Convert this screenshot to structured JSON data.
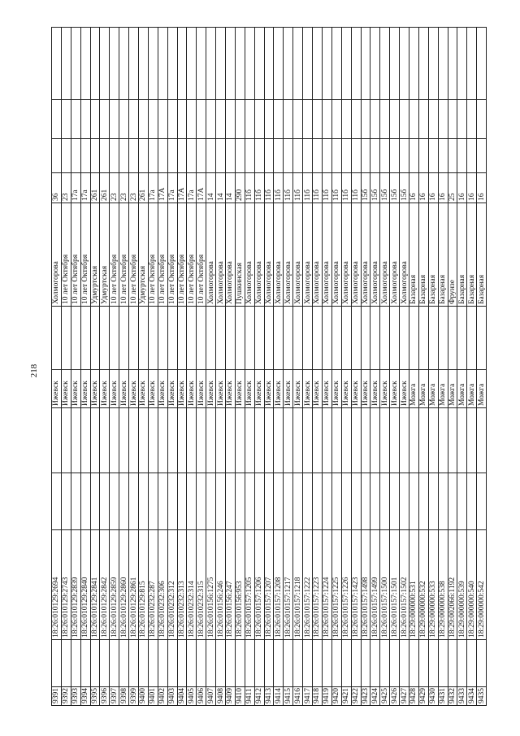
{
  "page_number": "218",
  "rows": [
    {
      "num": "9391",
      "cadastral": "18:26:010129:2694",
      "city": "Ижевск",
      "street": "Холмогорова",
      "house": "36"
    },
    {
      "num": "9392",
      "cadastral": "18:26:010129:2743",
      "city": "Ижевск",
      "street": "10 лет Октября",
      "house": "23"
    },
    {
      "num": "9393",
      "cadastral": "18:26:010129:2839",
      "city": "Ижевск",
      "street": "10 лет Октября",
      "house": "17а"
    },
    {
      "num": "9394",
      "cadastral": "18:26:010129:2840",
      "city": "Ижевск",
      "street": "10 лет Октября",
      "house": "17а"
    },
    {
      "num": "9395",
      "cadastral": "18:26:010129:2841",
      "city": "Ижевск",
      "street": "Удмуртская",
      "house": "261"
    },
    {
      "num": "9396",
      "cadastral": "18:26:010129:2842",
      "city": "Ижевск",
      "street": "Удмуртская",
      "house": "261"
    },
    {
      "num": "9397",
      "cadastral": "18:26:010129:2859",
      "city": "Ижевск",
      "street": "10 лет Октября",
      "house": "23"
    },
    {
      "num": "9398",
      "cadastral": "18:26:010129:2860",
      "city": "Ижевск",
      "street": "10 лет Октября",
      "house": "23"
    },
    {
      "num": "9399",
      "cadastral": "18:26:010129:2861",
      "city": "Ижевск",
      "street": "10 лет Октября",
      "house": "23"
    },
    {
      "num": "9400",
      "cadastral": "18:26:010129:815",
      "city": "Ижевск",
      "street": "Удмуртская",
      "house": "261"
    },
    {
      "num": "9401",
      "cadastral": "18:26:010232:287",
      "city": "Ижевск",
      "street": "10 лет Октября",
      "house": "17а"
    },
    {
      "num": "9402",
      "cadastral": "18:26:010232:306",
      "city": "Ижевск",
      "street": "10 лет Октября",
      "house": "17А"
    },
    {
      "num": "9403",
      "cadastral": "18:26:010232:312",
      "city": "Ижевск",
      "street": "10 лет Октября",
      "house": "17а"
    },
    {
      "num": "9404",
      "cadastral": "18:26:010232:313",
      "city": "Ижевск",
      "street": "10 лет Октября",
      "house": "17А"
    },
    {
      "num": "9405",
      "cadastral": "18:26:010232:314",
      "city": "Ижевск",
      "street": "10 лет Октября",
      "house": "17а"
    },
    {
      "num": "9406",
      "cadastral": "18:26:010232:315",
      "city": "Ижевск",
      "street": "10 лет Октября",
      "house": "17А"
    },
    {
      "num": "9407",
      "cadastral": "18:26:010156:1275",
      "city": "Ижевск",
      "street": "Холмогорова",
      "house": "14"
    },
    {
      "num": "9408",
      "cadastral": "18:26:010156:246",
      "city": "Ижевск",
      "street": "Холмогорова",
      "house": "14"
    },
    {
      "num": "9409",
      "cadastral": "18:26:010156:247",
      "city": "Ижевск",
      "street": "Холмогорова",
      "house": "14"
    },
    {
      "num": "9410",
      "cadastral": "18:26:010156:953",
      "city": "Ижевск",
      "street": "Пушкинская",
      "house": "290"
    },
    {
      "num": "9411",
      "cadastral": "18:26:010157:1205",
      "city": "Ижевск",
      "street": "Холмогорова",
      "house": "11б"
    },
    {
      "num": "9412",
      "cadastral": "18:26:010157:1206",
      "city": "Ижевск",
      "street": "Холмогорова",
      "house": "11б"
    },
    {
      "num": "9413",
      "cadastral": "18:26:010157:1207",
      "city": "Ижевск",
      "street": "Холмогорова",
      "house": "11б"
    },
    {
      "num": "9414",
      "cadastral": "18:26:010157:1208",
      "city": "Ижевск",
      "street": "Холмогорова",
      "house": "11б"
    },
    {
      "num": "9415",
      "cadastral": "18:26:010157:1217",
      "city": "Ижевск",
      "street": "Холмогорова",
      "house": "11б"
    },
    {
      "num": "9416",
      "cadastral": "18:26:010157:1218",
      "city": "Ижевск",
      "street": "Холмогорова",
      "house": "11б"
    },
    {
      "num": "9417",
      "cadastral": "18:26:010157:1222",
      "city": "Ижевск",
      "street": "Холмогорова",
      "house": "11б"
    },
    {
      "num": "9418",
      "cadastral": "18:26:010157:1223",
      "city": "Ижевск",
      "street": "Холмогорова",
      "house": "11б"
    },
    {
      "num": "9419",
      "cadastral": "18:26:010157:1224",
      "city": "Ижевск",
      "street": "Холмогорова",
      "house": "11б"
    },
    {
      "num": "9420",
      "cadastral": "18:26:010157:1225",
      "city": "Ижевск",
      "street": "Холмогорова",
      "house": "11б"
    },
    {
      "num": "9421",
      "cadastral": "18:26:010157:1226",
      "city": "Ижевск",
      "street": "Холмогорова",
      "house": "11б"
    },
    {
      "num": "9422",
      "cadastral": "18:26:010157:1423",
      "city": "Ижевск",
      "street": "Холмогорова",
      "house": "11б"
    },
    {
      "num": "9423",
      "cadastral": "18:26:010157:1498",
      "city": "Ижевск",
      "street": "Холмогорова",
      "house": "15б"
    },
    {
      "num": "9424",
      "cadastral": "18:26:010157:1499",
      "city": "Ижевск",
      "street": "Холмогорова",
      "house": "15б"
    },
    {
      "num": "9425",
      "cadastral": "18:26:010157:1500",
      "city": "Ижевск",
      "street": "Холмогорова",
      "house": "15б"
    },
    {
      "num": "9426",
      "cadastral": "18:26:010157:1501",
      "city": "Ижевск",
      "street": "Холмогорова",
      "house": "15б"
    },
    {
      "num": "9427",
      "cadastral": "18:26:010157:1502",
      "city": "Ижевск",
      "street": "Холмогорова",
      "house": "15б"
    },
    {
      "num": "9428",
      "cadastral": "18:29:000000:531",
      "city": "Можга",
      "street": "Базарная",
      "house": "16"
    },
    {
      "num": "9429",
      "cadastral": "18:29:000000:532",
      "city": "Можга",
      "street": "Базарная",
      "house": "16"
    },
    {
      "num": "9430",
      "cadastral": "18:29:000000:533",
      "city": "Можга",
      "street": "Базарная",
      "house": "16"
    },
    {
      "num": "9431",
      "cadastral": "18:29:000000:538",
      "city": "Можга",
      "street": "Базарная",
      "house": "16"
    },
    {
      "num": "9432",
      "cadastral": "18:29:002066:1192",
      "city": "Можга",
      "street": "Фрунзе",
      "house": "25"
    },
    {
      "num": "9433",
      "cadastral": "18:29:000000:539",
      "city": "Можга",
      "street": "Базарная",
      "house": "16"
    },
    {
      "num": "9434",
      "cadastral": "18:29:000000:540",
      "city": "Можга",
      "street": "Базарная",
      "house": "16"
    },
    {
      "num": "9435",
      "cadastral": "18:29:000000:542",
      "city": "Можга",
      "street": "Базарная",
      "house": "16"
    }
  ]
}
